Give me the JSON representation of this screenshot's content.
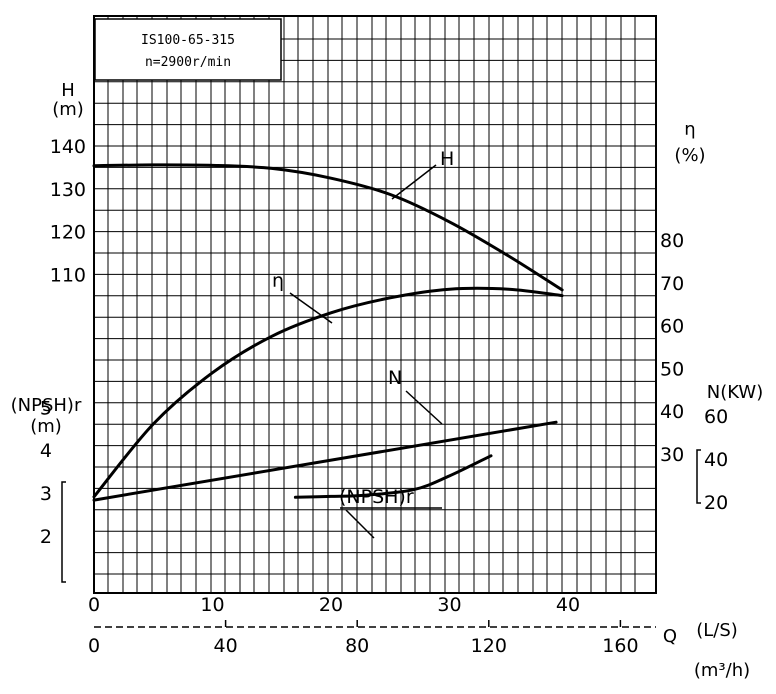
{
  "chart_data": {
    "type": "line",
    "info_box": {
      "model": "IS100-65-315",
      "speed": "n=2900r/min"
    },
    "axes": {
      "head": {
        "label_line1": "H",
        "label_line2": "(m)",
        "ticks": [
          110,
          120,
          130,
          140
        ]
      },
      "npsh": {
        "label_line1": "(NPSH)r",
        "label_line2": "(m)",
        "ticks": [
          2,
          3,
          4,
          5
        ]
      },
      "efficiency": {
        "label_line1": "η",
        "label_line2": "(%)",
        "ticks": [
          30,
          40,
          50,
          60,
          70,
          80
        ]
      },
      "power": {
        "label": "N(KW)",
        "ticks": [
          20,
          40,
          60
        ]
      },
      "flow_ls": {
        "label": "(L/S)",
        "ticks": [
          0,
          10,
          20,
          30,
          40
        ]
      },
      "flow_m3h": {
        "label": "Q",
        "unit": "(m³/h)",
        "ticks": [
          0,
          40,
          80,
          120,
          160
        ]
      }
    },
    "series": [
      {
        "name": "H",
        "unit": "m",
        "x_ls": [
          0,
          5,
          10,
          15,
          20,
          25,
          30,
          35,
          39.5
        ],
        "y": [
          135.4,
          135.6,
          135.5,
          134.8,
          132.5,
          128.7,
          122.3,
          114.3,
          106.4
        ]
      },
      {
        "name": "η",
        "unit": "%",
        "x_ls": [
          0,
          5,
          10,
          15,
          20,
          25,
          30,
          35,
          39.5
        ],
        "y": [
          20,
          37,
          49,
          57.5,
          63,
          66.5,
          68.5,
          68.5,
          67
        ]
      },
      {
        "name": "N",
        "unit": "kW",
        "x_ls": [
          0,
          39
        ],
        "y": [
          20.9,
          57.1
        ]
      },
      {
        "name": "(NPSH)r",
        "unit": "m",
        "x_ls": [
          17,
          20,
          23,
          27,
          30,
          33.5
        ],
        "y": [
          2.9,
          2.92,
          2.95,
          3.08,
          3.4,
          3.87
        ]
      }
    ]
  }
}
